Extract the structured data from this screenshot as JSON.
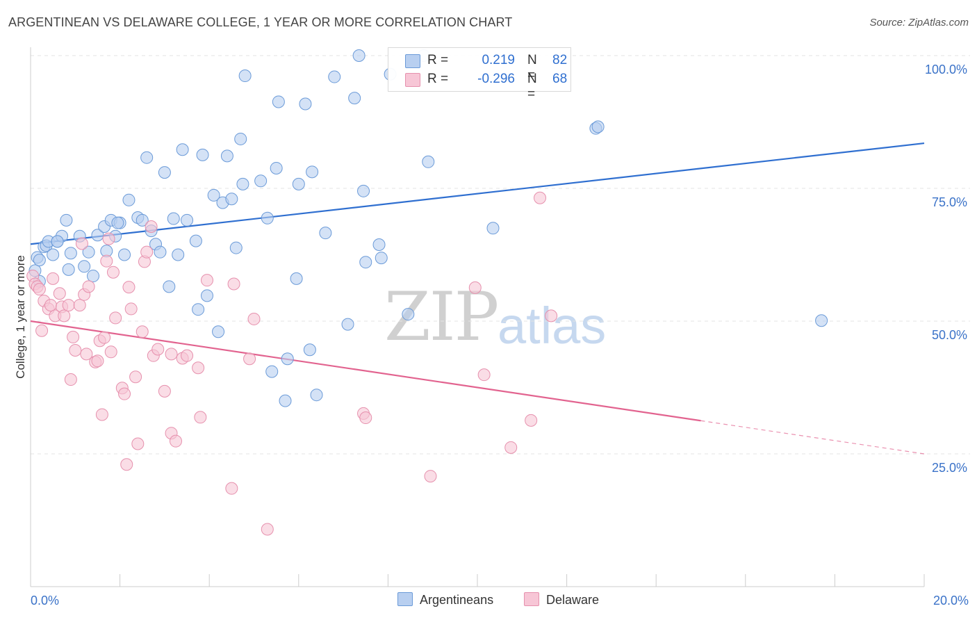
{
  "header": {
    "title": "ARGENTINEAN VS DELAWARE COLLEGE, 1 YEAR OR MORE CORRELATION CHART",
    "source": "Source: ZipAtlas.com"
  },
  "watermark": {
    "zip": "ZIP",
    "atlas": "atlas"
  },
  "legend": {
    "rows": [
      {
        "r_label": "R =",
        "r_value": "0.219",
        "n_label": "N =",
        "n_value": "82"
      },
      {
        "r_label": "R =",
        "r_value": "-0.296",
        "n_label": "N =",
        "n_value": "68"
      }
    ]
  },
  "bottom_legend": {
    "items": [
      "Argentineans",
      "Delaware"
    ]
  },
  "colors": {
    "blue_fill": "#b8cff0",
    "blue_stroke": "#6a9ad8",
    "blue_line": "#2f6fd0",
    "pink_fill": "#f7c6d6",
    "pink_stroke": "#e690ad",
    "pink_line": "#e2638f",
    "axis_label": "#3a72c8",
    "grid": "#e3e3e3"
  },
  "chart_data": {
    "type": "scatter",
    "title": "ARGENTINEAN VS DELAWARE COLLEGE, 1 YEAR OR MORE CORRELATION CHART",
    "xlabel": "",
    "ylabel": "College, 1 year or more",
    "xlim": [
      0,
      20
    ],
    "ylim": [
      0,
      100
    ],
    "x_tick_labels": [
      "0.0%",
      "20.0%"
    ],
    "y_ticks": [
      25,
      50,
      75,
      100
    ],
    "y_tick_labels": [
      "25.0%",
      "50.0%",
      "75.0%",
      "100.0%"
    ],
    "grid": true,
    "legend_position": "top-center",
    "series": [
      {
        "name": "Argentineans",
        "color": "#6a9ad8",
        "r": 0.219,
        "n": 82,
        "trend": {
          "x": [
            0,
            20
          ],
          "y": [
            64.5,
            83.5
          ],
          "dashed_from_x": null
        },
        "points": [
          [
            0.1,
            59.5
          ],
          [
            0.15,
            62
          ],
          [
            0.2,
            61.5
          ],
          [
            0.3,
            64
          ],
          [
            0.35,
            64.2
          ],
          [
            0.4,
            65
          ],
          [
            0.5,
            62.5
          ],
          [
            0.6,
            65
          ],
          [
            0.7,
            66
          ],
          [
            0.8,
            69
          ],
          [
            0.85,
            59.7
          ],
          [
            0.9,
            62.8
          ],
          [
            1.1,
            66
          ],
          [
            1.2,
            60.3
          ],
          [
            1.3,
            63
          ],
          [
            1.4,
            58.5
          ],
          [
            1.5,
            66.2
          ],
          [
            1.65,
            67.8
          ],
          [
            1.7,
            63.2
          ],
          [
            1.8,
            69
          ],
          [
            1.9,
            66
          ],
          [
            2.0,
            68.5
          ],
          [
            2.1,
            62.5
          ],
          [
            2.2,
            72.8
          ],
          [
            2.4,
            69.5
          ],
          [
            2.5,
            69
          ],
          [
            2.6,
            80.8
          ],
          [
            2.7,
            67
          ],
          [
            2.8,
            64.5
          ],
          [
            2.9,
            63
          ],
          [
            3.0,
            78
          ],
          [
            3.1,
            56.5
          ],
          [
            3.2,
            69.3
          ],
          [
            3.3,
            62.5
          ],
          [
            3.4,
            82.3
          ],
          [
            3.5,
            69
          ],
          [
            3.7,
            65.1
          ],
          [
            3.75,
            52.2
          ],
          [
            3.85,
            81.3
          ],
          [
            3.95,
            54.8
          ],
          [
            4.1,
            73.7
          ],
          [
            4.2,
            48
          ],
          [
            4.3,
            72.3
          ],
          [
            4.4,
            81.1
          ],
          [
            4.5,
            73
          ],
          [
            4.6,
            63.8
          ],
          [
            4.7,
            84.3
          ],
          [
            4.75,
            75.8
          ],
          [
            4.8,
            96.2
          ],
          [
            5.15,
            76.4
          ],
          [
            5.3,
            69.4
          ],
          [
            5.4,
            40.5
          ],
          [
            5.5,
            78.8
          ],
          [
            5.55,
            91.3
          ],
          [
            5.7,
            35
          ],
          [
            5.75,
            42.9
          ],
          [
            5.95,
            58
          ],
          [
            6.0,
            75.8
          ],
          [
            6.15,
            90.9
          ],
          [
            6.25,
            44.6
          ],
          [
            6.3,
            78.1
          ],
          [
            6.4,
            36.1
          ],
          [
            6.6,
            66.6
          ],
          [
            6.8,
            96
          ],
          [
            7.1,
            49.4
          ],
          [
            7.25,
            92
          ],
          [
            7.35,
            100
          ],
          [
            7.45,
            74.5
          ],
          [
            7.5,
            61.1
          ],
          [
            7.8,
            64.4
          ],
          [
            7.85,
            61.9
          ],
          [
            8.05,
            96.5
          ],
          [
            8.45,
            51.3
          ],
          [
            8.8,
            100
          ],
          [
            8.9,
            80
          ],
          [
            10.35,
            67.5
          ],
          [
            12.65,
            86.3
          ],
          [
            12.7,
            86.6
          ],
          [
            17.7,
            50.1
          ],
          [
            0.2,
            57.5
          ],
          [
            0.6,
            65
          ],
          [
            1.95,
            68.5
          ]
        ]
      },
      {
        "name": "Delaware",
        "color": "#e690ad",
        "r": -0.296,
        "n": 68,
        "trend": {
          "x": [
            0,
            20
          ],
          "y": [
            50,
            25
          ],
          "dashed_from_x": 15
        },
        "points": [
          [
            0.05,
            58.5
          ],
          [
            0.1,
            57
          ],
          [
            0.15,
            56.5
          ],
          [
            0.25,
            48.2
          ],
          [
            0.3,
            53.8
          ],
          [
            0.4,
            52.3
          ],
          [
            0.45,
            53
          ],
          [
            0.5,
            58
          ],
          [
            0.55,
            51
          ],
          [
            0.65,
            55.2
          ],
          [
            0.7,
            52.7
          ],
          [
            0.75,
            51
          ],
          [
            0.85,
            53
          ],
          [
            0.9,
            39
          ],
          [
            0.95,
            47
          ],
          [
            1.0,
            44.5
          ],
          [
            1.1,
            53
          ],
          [
            1.15,
            64.6
          ],
          [
            1.2,
            55
          ],
          [
            1.25,
            43.8
          ],
          [
            1.3,
            56.5
          ],
          [
            1.45,
            42.3
          ],
          [
            1.5,
            42.5
          ],
          [
            1.55,
            46.3
          ],
          [
            1.6,
            32.4
          ],
          [
            1.65,
            46.9
          ],
          [
            1.7,
            61.3
          ],
          [
            1.75,
            65.5
          ],
          [
            1.8,
            44.2
          ],
          [
            1.85,
            59.2
          ],
          [
            1.9,
            50.6
          ],
          [
            2.05,
            37.4
          ],
          [
            2.1,
            36.3
          ],
          [
            2.15,
            23
          ],
          [
            2.2,
            56.4
          ],
          [
            2.25,
            52.3
          ],
          [
            2.35,
            39.5
          ],
          [
            2.4,
            26.9
          ],
          [
            2.5,
            48
          ],
          [
            2.55,
            61.2
          ],
          [
            2.6,
            63
          ],
          [
            2.7,
            67.8
          ],
          [
            2.75,
            43.5
          ],
          [
            2.85,
            44.7
          ],
          [
            3.0,
            36.8
          ],
          [
            3.15,
            43.8
          ],
          [
            3.15,
            28.9
          ],
          [
            3.25,
            27.4
          ],
          [
            3.4,
            43
          ],
          [
            3.5,
            43.5
          ],
          [
            3.75,
            41.2
          ],
          [
            3.8,
            31.9
          ],
          [
            3.95,
            57.7
          ],
          [
            4.55,
            57
          ],
          [
            4.5,
            18.5
          ],
          [
            4.9,
            42.9
          ],
          [
            5.0,
            50.4
          ],
          [
            5.3,
            10.8
          ],
          [
            7.45,
            32.6
          ],
          [
            7.5,
            31.8
          ],
          [
            8.95,
            20.8
          ],
          [
            9.95,
            56.3
          ],
          [
            10.15,
            39.9
          ],
          [
            10.75,
            26.2
          ],
          [
            11.2,
            31.3
          ],
          [
            11.4,
            73.2
          ],
          [
            11.65,
            51
          ],
          [
            0.2,
            56
          ]
        ]
      }
    ]
  }
}
